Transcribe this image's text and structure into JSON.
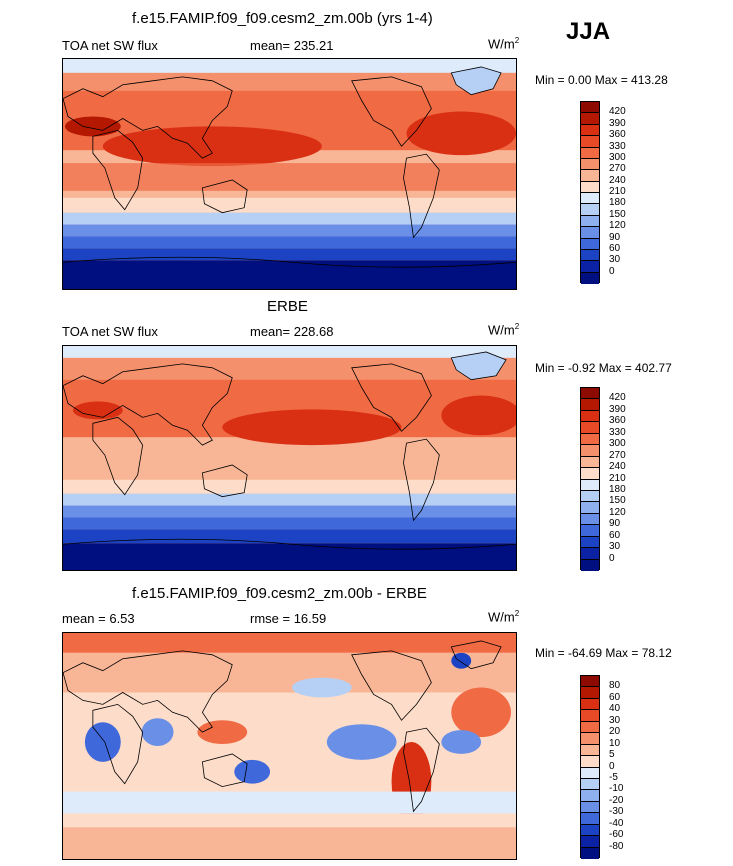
{
  "season": "JJA",
  "panels": [
    {
      "title": "f.e15.FAMIP.f09_f09.cesm2_zm.00b (yrs 1-4)",
      "left": "TOA net SW flux",
      "center": "mean= 235.21",
      "unit": "W/m",
      "unit_sup": "2",
      "minmax": "Min =   0.00 Max = 413.28",
      "levels": [
        "420",
        "390",
        "360",
        "330",
        "300",
        "270",
        "240",
        "210",
        "180",
        "150",
        "120",
        "90",
        "60",
        "30",
        "0"
      ],
      "colors": [
        "#8c0a00",
        "#b51800",
        "#d93014",
        "#e84a28",
        "#f06a44",
        "#f5906c",
        "#f9b697",
        "#fdddc9",
        "#ddebfa",
        "#b6cff4",
        "#8fb0ee",
        "#6990e6",
        "#3f68da",
        "#1c43c3",
        "#0a22a3",
        "#000f80"
      ]
    },
    {
      "title": "ERBE",
      "left": "TOA net SW flux",
      "center": "mean= 228.68",
      "unit": "W/m",
      "unit_sup": "2",
      "minmax": "Min =  -0.92 Max = 402.77",
      "levels": [
        "420",
        "390",
        "360",
        "330",
        "300",
        "270",
        "240",
        "210",
        "180",
        "150",
        "120",
        "90",
        "60",
        "30",
        "0"
      ],
      "colors": [
        "#8c0a00",
        "#b51800",
        "#d93014",
        "#e84a28",
        "#f06a44",
        "#f5906c",
        "#f9b697",
        "#fdddc9",
        "#ddebfa",
        "#b6cff4",
        "#8fb0ee",
        "#6990e6",
        "#3f68da",
        "#1c43c3",
        "#0a22a3",
        "#000f80"
      ]
    },
    {
      "title": "f.e15.FAMIP.f09_f09.cesm2_zm.00b - ERBE",
      "left": "mean =   6.53",
      "center": "rmse =  16.59",
      "unit": "W/m",
      "unit_sup": "2",
      "minmax": "Min = -64.69 Max =  78.12",
      "levels": [
        "80",
        "60",
        "40",
        "30",
        "20",
        "10",
        "5",
        "0",
        "-5",
        "-10",
        "-20",
        "-30",
        "-40",
        "-60",
        "-80"
      ],
      "colors": [
        "#8c0a00",
        "#b51800",
        "#d93014",
        "#e84a28",
        "#f06a44",
        "#f5906c",
        "#f9b697",
        "#fdddc9",
        "#ddebfa",
        "#b6cff4",
        "#8fb0ee",
        "#6990e6",
        "#3f68da",
        "#1c43c3",
        "#0a22a3",
        "#000f80"
      ]
    }
  ],
  "chart_data": [
    {
      "type": "heatmap",
      "title": "f.e15.FAMIP.f09_f09.cesm2_zm.00b (yrs 1-4)",
      "variable": "TOA net SW flux",
      "mean": 235.21,
      "min": 0.0,
      "max": 413.28,
      "contour_levels": [
        0,
        30,
        60,
        90,
        120,
        150,
        180,
        210,
        240,
        270,
        300,
        330,
        360,
        390,
        420
      ]
    },
    {
      "type": "heatmap",
      "title": "ERBE",
      "variable": "TOA net SW flux",
      "mean": 228.68,
      "min": -0.92,
      "max": 402.77,
      "contour_levels": [
        0,
        30,
        60,
        90,
        120,
        150,
        180,
        210,
        240,
        270,
        300,
        330,
        360,
        390,
        420
      ]
    },
    {
      "type": "heatmap",
      "title": "f.e15.FAMIP.f09_f09.cesm2_zm.00b - ERBE",
      "mean": 6.53,
      "rmse": 16.59,
      "min": -64.69,
      "max": 78.12,
      "contour_levels": [
        -80,
        -60,
        -40,
        -30,
        -20,
        -10,
        -5,
        0,
        5,
        10,
        20,
        30,
        40,
        60,
        80
      ]
    }
  ]
}
